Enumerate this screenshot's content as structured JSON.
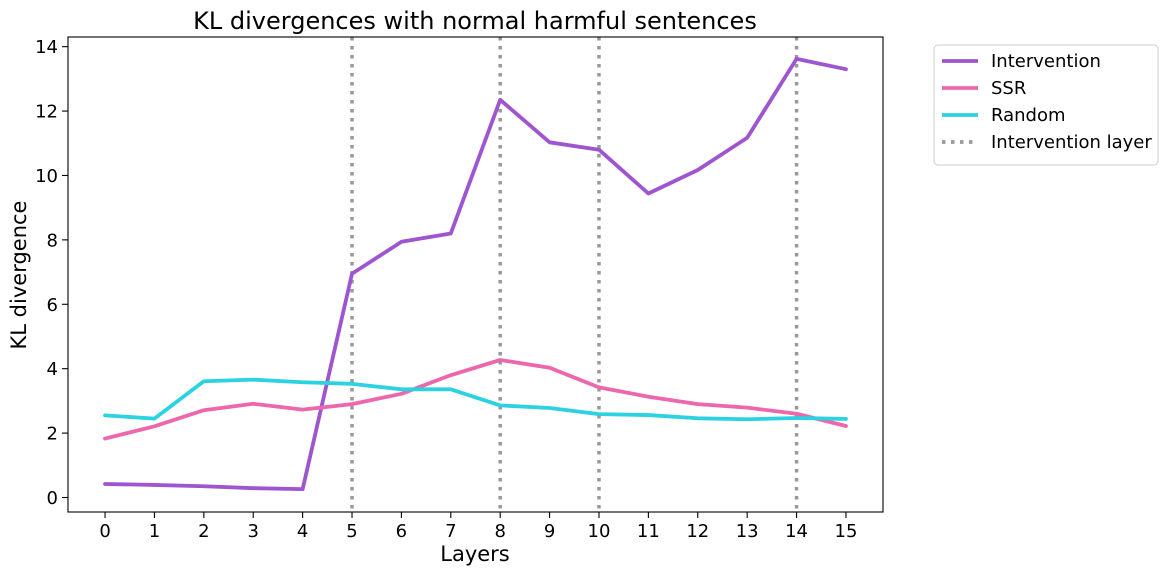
{
  "chart_data": {
    "type": "line",
    "title": "KL divergences with normal harmful sentences",
    "xlabel": "Layers",
    "ylabel": "KL divergence",
    "x": [
      0,
      1,
      2,
      3,
      4,
      5,
      6,
      7,
      8,
      9,
      10,
      11,
      12,
      13,
      14,
      15
    ],
    "x_tick_labels": [
      "0",
      "1",
      "2",
      "3",
      "4",
      "5",
      "6",
      "7",
      "8",
      "9",
      "10",
      "11",
      "12",
      "13",
      "14",
      "15"
    ],
    "y_ticks": [
      0,
      2,
      4,
      6,
      8,
      10,
      12,
      14
    ],
    "y_tick_labels": [
      "0",
      "2",
      "4",
      "6",
      "8",
      "10",
      "12",
      "14"
    ],
    "xlim": [
      -0.75,
      15.75
    ],
    "ylim": [
      -0.45,
      14.3
    ],
    "grid": false,
    "legend_position": "outside-top-right",
    "series": [
      {
        "name": "Intervention",
        "color": "#9e55cf",
        "values": [
          0.42,
          0.39,
          0.35,
          0.29,
          0.26,
          6.95,
          7.94,
          8.2,
          12.35,
          11.03,
          10.8,
          9.44,
          10.17,
          11.17,
          13.62,
          13.3
        ]
      },
      {
        "name": "SSR",
        "color": "#ec67ac",
        "values": [
          1.83,
          2.21,
          2.71,
          2.91,
          2.73,
          2.9,
          3.22,
          3.8,
          4.27,
          4.03,
          3.42,
          3.13,
          2.9,
          2.79,
          2.6,
          2.22
        ]
      },
      {
        "name": "Random",
        "color": "#2cd2e1",
        "values": [
          2.55,
          2.45,
          3.61,
          3.66,
          3.58,
          3.53,
          3.36,
          3.36,
          2.86,
          2.78,
          2.59,
          2.56,
          2.46,
          2.43,
          2.47,
          2.44
        ]
      }
    ],
    "intervention_layers": {
      "name": "Intervention layer",
      "color": "#999999",
      "x": [
        5,
        8,
        10,
        14
      ]
    }
  }
}
